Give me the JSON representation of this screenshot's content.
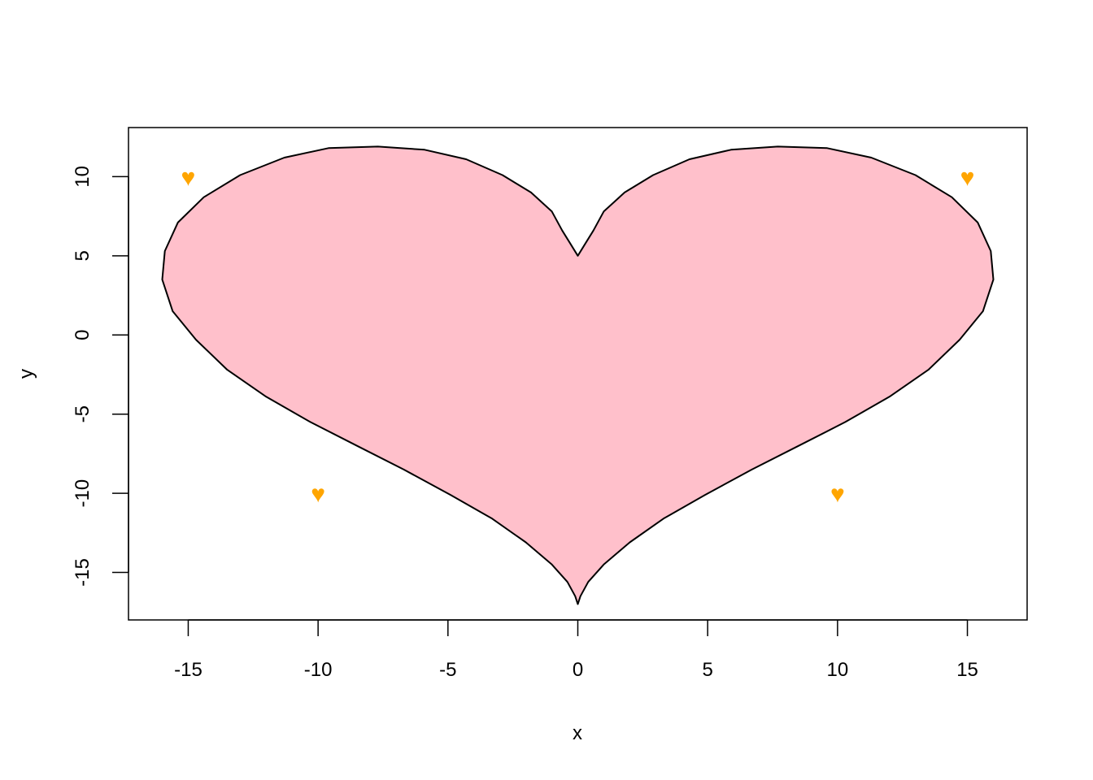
{
  "chart_data": {
    "type": "area",
    "xlabel": "x",
    "ylabel": "y",
    "xlim": [
      -17.3,
      17.3
    ],
    "ylim": [
      -18.0,
      13.1
    ],
    "x_ticks": [
      -15,
      -10,
      -5,
      0,
      5,
      10,
      15
    ],
    "x_tick_labels": [
      "-15",
      "-10",
      "-5",
      "0",
      "5",
      "10",
      "15"
    ],
    "y_ticks": [
      -15,
      -10,
      -5,
      0,
      5,
      10
    ],
    "y_tick_labels": [
      "-15",
      "-10",
      "-5",
      "0",
      "5",
      "10"
    ],
    "grid": false,
    "colors": {
      "fill": "#ffc0cb",
      "outline": "#000000",
      "marker": "#ffa500",
      "frame": "#000000"
    },
    "shape": {
      "x": [
        0.0,
        0.3,
        0.6,
        1.0,
        1.8,
        2.9,
        4.3,
        5.9,
        7.7,
        9.6,
        11.3,
        13.0,
        14.4,
        15.4,
        15.9,
        16.0,
        15.6,
        14.7,
        13.5,
        12.0,
        10.3,
        8.5,
        6.7,
        4.9,
        3.3,
        2.0,
        1.0,
        0.4,
        0.1,
        0.0,
        -0.1,
        -0.4,
        -1.0,
        -2.0,
        -3.3,
        -4.9,
        -6.7,
        -8.5,
        -10.3,
        -12.0,
        -13.5,
        -14.7,
        -15.6,
        -16.0,
        -15.9,
        -15.4,
        -14.4,
        -13.0,
        -11.3,
        -9.6,
        -7.7,
        -5.9,
        -4.3,
        -2.9,
        -1.8,
        -1.0,
        -0.6,
        -0.3,
        0.0
      ],
      "y": [
        5.0,
        5.8,
        6.6,
        7.8,
        9.0,
        10.1,
        11.1,
        11.7,
        11.9,
        11.8,
        11.2,
        10.1,
        8.7,
        7.1,
        5.3,
        3.5,
        1.5,
        -0.3,
        -2.2,
        -3.9,
        -5.5,
        -7.0,
        -8.5,
        -10.1,
        -11.6,
        -13.1,
        -14.5,
        -15.6,
        -16.5,
        -17.0,
        -16.5,
        -15.6,
        -14.5,
        -13.1,
        -11.6,
        -10.1,
        -8.5,
        -7.0,
        -5.5,
        -3.9,
        -2.2,
        -0.3,
        1.5,
        3.5,
        5.3,
        7.1,
        8.7,
        10.1,
        11.2,
        11.8,
        11.9,
        11.7,
        11.1,
        10.1,
        9.0,
        7.8,
        6.6,
        5.8,
        5.0
      ]
    },
    "markers": [
      {
        "x": -15,
        "y": 10,
        "symbol": "♥"
      },
      {
        "x": 15,
        "y": 10,
        "symbol": "♥"
      },
      {
        "x": -10,
        "y": -10,
        "symbol": "♥"
      },
      {
        "x": 10,
        "y": -10,
        "symbol": "♥"
      }
    ]
  }
}
